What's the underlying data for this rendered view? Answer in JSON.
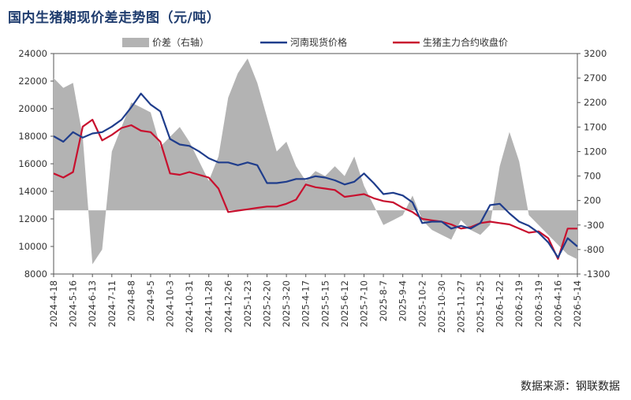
{
  "title": "国内生猪期现价差走势图（元/吨）",
  "source": "数据来源：钢联数据",
  "chart_data": {
    "type": "line",
    "title": "国内生猪期现价差走势图（元/吨）",
    "x_ticks": [
      "2024-4-18",
      "2024-5-16",
      "2024-6-13",
      "2024-7-11",
      "2024-8-8",
      "2024-9-5",
      "2024-10-3",
      "2024-10-31",
      "2024-11-28",
      "2024-12-26",
      "2025-1-23",
      "2025-2-20",
      "2025-3-20",
      "2025-4-17",
      "2025-5-15",
      "2025-6-12",
      "2025-7-10",
      "2025-8-7",
      "2025-9-4",
      "2025-10-2",
      "2025-10-30",
      "2025-11-27",
      "2025-12-25",
      "2026-1-22",
      "2026-2-19",
      "2026-3-19",
      "2026-4-16",
      "2026-5-14"
    ],
    "left_axis": {
      "min": 8000,
      "max": 24000,
      "ticks": [
        8000,
        10000,
        12000,
        14000,
        16000,
        18000,
        20000,
        22000,
        24000
      ]
    },
    "right_axis": {
      "min": -1300,
      "max": 3200,
      "ticks": [
        -1300,
        -800,
        -300,
        200,
        700,
        1200,
        1700,
        2200,
        2700,
        3200
      ]
    },
    "legend": [
      "价差（右轴）",
      "河南现货价格",
      "生猪主力合约收盘价"
    ],
    "colors": {
      "spread": "#b3b3b3",
      "spot": "#1f3d8c",
      "futures": "#c8102e"
    },
    "series": [
      {
        "name": "价差（右轴）",
        "axis": "right",
        "style": "area",
        "x": [
          "2024-4-18",
          "2024-5-2",
          "2024-5-16",
          "2024-5-30",
          "2024-6-13",
          "2024-6-27",
          "2024-7-11",
          "2024-7-25",
          "2024-8-8",
          "2024-8-22",
          "2024-9-5",
          "2024-9-19",
          "2024-10-3",
          "2024-10-17",
          "2024-10-31",
          "2024-11-14",
          "2024-11-28",
          "2024-12-12",
          "2024-12-26",
          "2025-1-9",
          "2025-1-23",
          "2025-2-6",
          "2025-2-20",
          "2025-3-6",
          "2025-3-20",
          "2025-4-3",
          "2025-4-17",
          "2025-5-1",
          "2025-5-15",
          "2025-5-29",
          "2025-6-12",
          "2025-6-26",
          "2025-7-10",
          "2025-7-24",
          "2025-8-7",
          "2025-8-21",
          "2025-9-4",
          "2025-9-18",
          "2025-10-2",
          "2025-10-16",
          "2025-10-30",
          "2025-11-13",
          "2025-11-27",
          "2025-12-11",
          "2025-12-25",
          "2026-1-8",
          "2026-1-22",
          "2026-2-5",
          "2026-2-19",
          "2026-3-5",
          "2026-3-19",
          "2026-4-2",
          "2026-4-16",
          "2026-4-30",
          "2026-5-14"
        ],
        "values": [
          2700,
          2500,
          2600,
          1500,
          -1100,
          -800,
          1200,
          1700,
          2200,
          2100,
          2000,
          1300,
          1500,
          1700,
          1400,
          1000,
          600,
          1100,
          2300,
          2800,
          3100,
          2600,
          1900,
          1200,
          1400,
          900,
          600,
          800,
          700,
          900,
          700,
          1100,
          500,
          100,
          -300,
          -200,
          -100,
          300,
          -200,
          -400,
          -500,
          -600,
          -200,
          -400,
          -500,
          -300,
          900,
          1600,
          1000,
          -100,
          -300,
          -500,
          -700,
          -900,
          -1000
        ]
      },
      {
        "name": "河南现货价格",
        "axis": "left",
        "style": "line",
        "x": [
          "2024-4-18",
          "2024-5-2",
          "2024-5-16",
          "2024-5-30",
          "2024-6-13",
          "2024-6-27",
          "2024-7-11",
          "2024-7-25",
          "2024-8-8",
          "2024-8-22",
          "2024-9-5",
          "2024-9-19",
          "2024-10-3",
          "2024-10-17",
          "2024-10-31",
          "2024-11-14",
          "2024-11-28",
          "2024-12-12",
          "2024-12-26",
          "2025-1-9",
          "2025-1-23",
          "2025-2-6",
          "2025-2-20",
          "2025-3-6",
          "2025-3-20",
          "2025-4-3",
          "2025-4-17",
          "2025-5-1",
          "2025-5-15",
          "2025-5-29",
          "2025-6-12",
          "2025-6-26",
          "2025-7-10",
          "2025-7-24",
          "2025-8-7",
          "2025-8-21",
          "2025-9-4",
          "2025-9-18",
          "2025-10-2",
          "2025-10-16",
          "2025-10-30",
          "2025-11-13",
          "2025-11-27",
          "2025-12-11",
          "2025-12-25",
          "2026-1-8",
          "2026-1-22",
          "2026-2-5",
          "2026-2-19",
          "2026-3-5",
          "2026-3-19",
          "2026-4-2",
          "2026-4-16",
          "2026-4-30",
          "2026-5-14"
        ],
        "values": [
          18000,
          17600,
          18300,
          17900,
          18200,
          18300,
          18700,
          19200,
          20100,
          21100,
          20300,
          19800,
          17800,
          17400,
          17300,
          16900,
          16400,
          16100,
          16100,
          15900,
          16100,
          15900,
          14600,
          14600,
          14700,
          14900,
          14900,
          15100,
          15000,
          14800,
          14500,
          14700,
          15300,
          14600,
          13800,
          13900,
          13700,
          13200,
          11700,
          11800,
          11800,
          11300,
          11500,
          11300,
          11700,
          13000,
          13100,
          12400,
          11800,
          11500,
          11000,
          10300,
          9200,
          10600,
          10000
        ]
      },
      {
        "name": "生猪主力合约收盘价",
        "axis": "left",
        "style": "line",
        "x": [
          "2024-4-18",
          "2024-5-2",
          "2024-5-16",
          "2024-5-30",
          "2024-6-13",
          "2024-6-27",
          "2024-7-11",
          "2024-7-25",
          "2024-8-8",
          "2024-8-22",
          "2024-9-5",
          "2024-9-19",
          "2024-10-3",
          "2024-10-17",
          "2024-10-31",
          "2024-11-14",
          "2024-11-28",
          "2024-12-12",
          "2024-12-26",
          "2025-1-9",
          "2025-1-23",
          "2025-2-6",
          "2025-2-20",
          "2025-3-6",
          "2025-3-20",
          "2025-4-3",
          "2025-4-17",
          "2025-5-1",
          "2025-5-15",
          "2025-5-29",
          "2025-6-12",
          "2025-6-26",
          "2025-7-10",
          "2025-7-24",
          "2025-8-7",
          "2025-8-21",
          "2025-9-4",
          "2025-9-18",
          "2025-10-2",
          "2025-10-16",
          "2025-10-30",
          "2025-11-13",
          "2025-11-27",
          "2025-12-11",
          "2025-12-25",
          "2026-1-8",
          "2026-1-22",
          "2026-2-5",
          "2026-2-19",
          "2026-3-5",
          "2026-3-19",
          "2026-4-2",
          "2026-4-16",
          "2026-4-30",
          "2026-5-14"
        ],
        "values": [
          15300,
          15000,
          15400,
          18700,
          19200,
          17700,
          18100,
          18600,
          18800,
          18400,
          18300,
          17600,
          15300,
          15200,
          15400,
          15200,
          15000,
          14200,
          12500,
          12600,
          12700,
          12800,
          12900,
          12900,
          13100,
          13400,
          14500,
          14300,
          14200,
          14100,
          13600,
          13700,
          13800,
          13500,
          13300,
          13200,
          12800,
          12500,
          12000,
          11900,
          11800,
          11600,
          11300,
          11400,
          11700,
          11800,
          11700,
          11600,
          11300,
          11000,
          11100,
          10600,
          9100,
          11300,
          11300
        ]
      }
    ]
  }
}
